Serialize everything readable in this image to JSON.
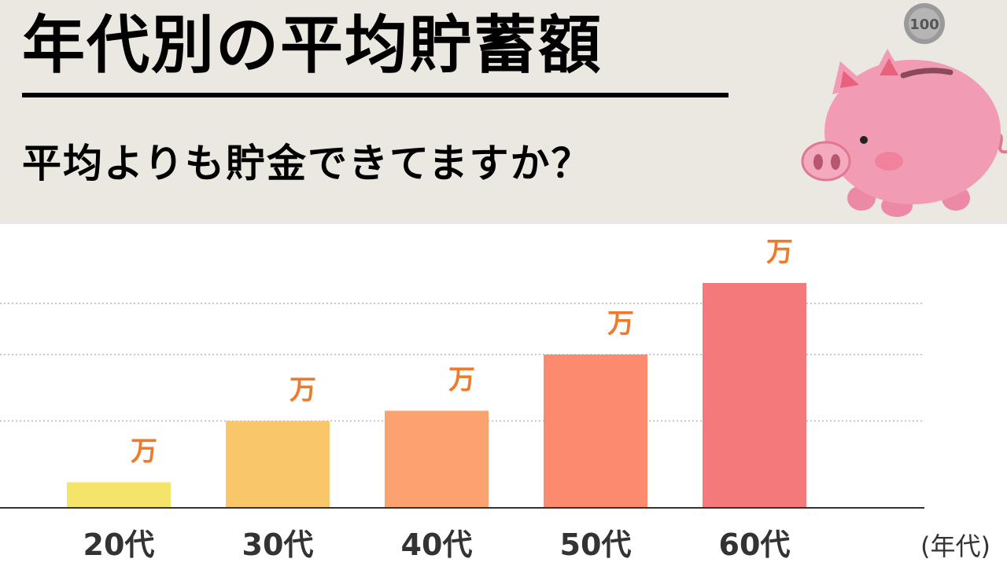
{
  "header": {
    "title": "年代別の平均貯蓄額",
    "subtitle": "平均よりも貯金できてますか？"
  },
  "illustration": {
    "icon": "piggy-bank-icon",
    "coin_text": "100"
  },
  "colors": {
    "background": "#ebe7e1",
    "panel": "#ffffff",
    "unit_label": "#f07a2a",
    "bars": [
      "#f5e46a",
      "#f9c76a",
      "#fca26e",
      "#fb8a6e",
      "#f4797a"
    ]
  },
  "chart_data": {
    "type": "bar",
    "categories": [
      "20代",
      "30代",
      "40代",
      "50代",
      "60代"
    ],
    "values": [
      0.5,
      1.7,
      1.9,
      3.0,
      4.4
    ],
    "value_labels": [
      "万",
      "万",
      "万",
      "万",
      "万"
    ],
    "xlabel": "(年代)",
    "ylabel": "",
    "ylim": [
      0,
      5
    ],
    "gridlines": [
      1.7,
      3.0,
      4.0
    ],
    "grid": true,
    "legend": false
  }
}
